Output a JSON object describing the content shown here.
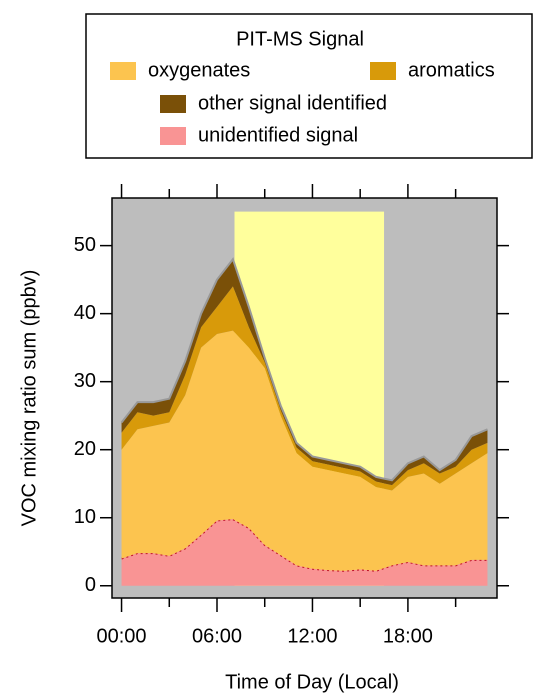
{
  "chart_data": {
    "type": "stacked_area",
    "legend_title": "PIT-MS Signal",
    "x_label": "Time of Day (Local)",
    "y_label": "VOC mixing ratio sum (ppbv)",
    "x": [
      0,
      1,
      2,
      3,
      4,
      5,
      6,
      7,
      8,
      9,
      10,
      11,
      12,
      13,
      14,
      15,
      16,
      17,
      18,
      19,
      20,
      21,
      22,
      23
    ],
    "series": [
      {
        "name": "unidentified signal",
        "color": "#f99494",
        "values": [
          4,
          4.8,
          4.8,
          4.4,
          5.5,
          7.5,
          9.6,
          9.8,
          8.5,
          6,
          4.5,
          3,
          2.5,
          2.3,
          2.2,
          2.4,
          2.2,
          3,
          3.5,
          3,
          3,
          3,
          3.8,
          3.8
        ]
      },
      {
        "name": "oxygenates",
        "color": "#fcc44f",
        "values": [
          16,
          18.2,
          18.7,
          19.6,
          22.5,
          27.5,
          27.4,
          27.7,
          26.5,
          26,
          20.5,
          16.5,
          15,
          14.7,
          14.3,
          13.6,
          12.3,
          11,
          12.5,
          13.5,
          12,
          13.5,
          14.2,
          15.7
        ]
      },
      {
        "name": "aromatics",
        "color": "#d89a0a",
        "values": [
          2.5,
          2.5,
          1.5,
          1.5,
          3,
          3,
          4,
          6.5,
          3,
          0.8,
          0.8,
          0.8,
          0.8,
          0.8,
          0.8,
          0.8,
          0.8,
          0.8,
          1,
          1.5,
          1.5,
          1,
          2,
          1.5
        ]
      },
      {
        "name": "other signal identified",
        "color": "#7a5008",
        "values": [
          1.5,
          1.5,
          2,
          2,
          2,
          2,
          4,
          4,
          3,
          0.7,
          0.7,
          0.7,
          0.7,
          0.7,
          0.7,
          0.7,
          0.7,
          0.7,
          1,
          1,
          0.5,
          1,
          2,
          2
        ]
      }
    ],
    "shaded_region": {
      "x": [
        7.1,
        16.5
      ],
      "y": [
        0,
        55
      ],
      "color": "#ffff9c"
    },
    "xlim": [
      -0.6,
      23.6
    ],
    "ylim": [
      -1.8,
      57
    ],
    "xticks": [
      {
        "value": 0,
        "label": "00:00"
      },
      {
        "value": 6,
        "label": "06:00"
      },
      {
        "value": 12,
        "label": "12:00"
      },
      {
        "value": 18,
        "label": "18:00"
      }
    ],
    "xminor_ticks": [
      3,
      9,
      15,
      21
    ],
    "yticks": [
      0,
      10,
      20,
      30,
      40,
      50
    ],
    "background": "#bdbdbd"
  }
}
